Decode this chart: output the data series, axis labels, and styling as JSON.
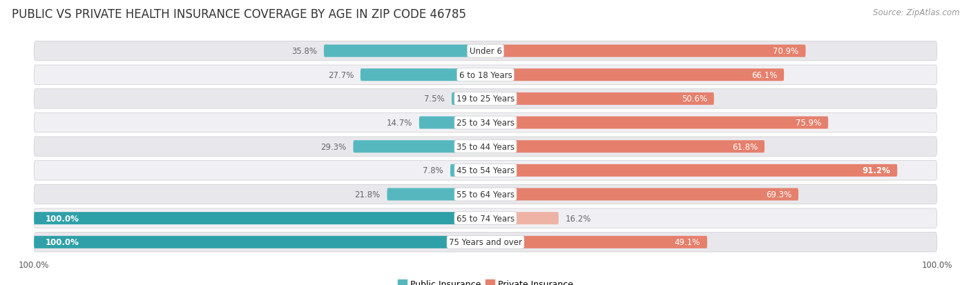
{
  "title": "PUBLIC VS PRIVATE HEALTH INSURANCE COVERAGE BY AGE IN ZIP CODE 46785",
  "source": "Source: ZipAtlas.com",
  "categories": [
    "Under 6",
    "6 to 18 Years",
    "19 to 25 Years",
    "25 to 34 Years",
    "35 to 44 Years",
    "45 to 54 Years",
    "55 to 64 Years",
    "65 to 74 Years",
    "75 Years and over"
  ],
  "public_values": [
    35.8,
    27.7,
    7.5,
    14.7,
    29.3,
    7.8,
    21.8,
    100.0,
    100.0
  ],
  "private_values": [
    70.9,
    66.1,
    50.6,
    75.9,
    61.8,
    91.2,
    69.3,
    16.2,
    49.1
  ],
  "public_color": "#56b8be",
  "private_color": "#e5806c",
  "public_color_full": "#2fa0a8",
  "private_color_full": "#efb3a5",
  "row_bg_even": "#e8e8ec",
  "row_bg_odd": "#f0f0f4",
  "label_color_dark": "#666666",
  "label_color_white": "#ffffff",
  "axis_max": 100.0,
  "title_fontsize": 12,
  "label_fontsize": 8.5,
  "cat_fontsize": 8.5,
  "tick_fontsize": 8.5,
  "source_fontsize": 8.5,
  "legend_fontsize": 9.0
}
